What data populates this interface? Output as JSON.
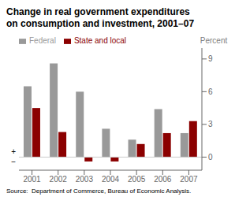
{
  "chart_data": {
    "type": "bar",
    "title": "Change in real government expenditures",
    "subtitle": "on consumption and investment, 2001–07",
    "categories": [
      "2001",
      "2002",
      "2003",
      "2004",
      "2005",
      "2006",
      "2007"
    ],
    "series": [
      {
        "name": "Federal",
        "color": "#999999",
        "values": [
          6.5,
          8.6,
          6.0,
          2.6,
          1.6,
          4.4,
          2.2
        ]
      },
      {
        "name": "State and local",
        "color": "#8B0000",
        "values": [
          4.5,
          2.3,
          -0.4,
          -0.4,
          1.2,
          2.2,
          3.3
        ]
      }
    ],
    "ylim": [
      -1.2,
      10.0
    ],
    "yticks": [
      0,
      3,
      6,
      9
    ],
    "ylabel": "Percent",
    "legend": "upper left",
    "grid": false,
    "source": "Source:  Department of Commerce, Bureau of Economic Analysis.",
    "annotations": [
      "+",
      "−"
    ]
  }
}
